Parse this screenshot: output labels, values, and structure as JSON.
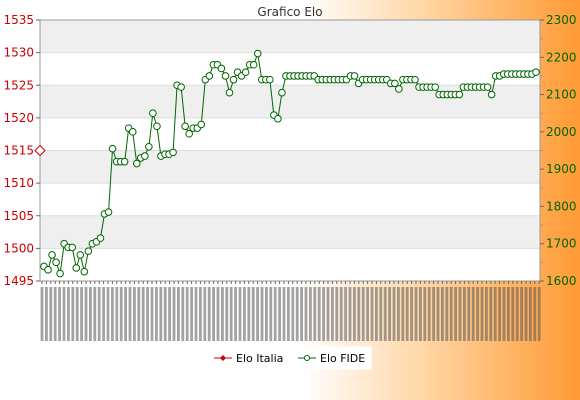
{
  "chart_data": {
    "type": "line",
    "title": "Grafico Elo",
    "legend": {
      "placement": "bottom-center",
      "items": [
        "Elo Italia",
        "Elo FIDE"
      ]
    },
    "y_left": {
      "label": "",
      "ticks": [
        "1495",
        "1500",
        "1505",
        "1510",
        "1515",
        "1520",
        "1525",
        "1530",
        "1535"
      ],
      "ylim": [
        1495,
        1535
      ],
      "color": "#cc0000"
    },
    "y_right": {
      "label": "",
      "ticks": [
        "1600",
        "1700",
        "1800",
        "1900",
        "2000",
        "2100",
        "2200",
        "2300"
      ],
      "ylim": [
        1600,
        2300
      ],
      "color": "#006600"
    },
    "grid": true,
    "series": [
      {
        "name": "Elo Italia",
        "axis": "left",
        "color": "#cc0000",
        "marker": "diamond",
        "values": [
          1515
        ]
      },
      {
        "name": "Elo FIDE",
        "axis": "right",
        "color": "#006600",
        "marker": "circle",
        "values": [
          1639,
          1630,
          1670,
          1650,
          1620,
          1700,
          1690,
          1690,
          1635,
          1670,
          1625,
          1680,
          1700,
          1705,
          1715,
          1780,
          1785,
          1955,
          1920,
          1920,
          1920,
          2010,
          2000,
          1915,
          1930,
          1935,
          1960,
          2050,
          2015,
          1935,
          1940,
          1940,
          1945,
          2125,
          2120,
          2015,
          1995,
          2010,
          2010,
          2020,
          2140,
          2150,
          2180,
          2180,
          2170,
          2150,
          2105,
          2140,
          2160,
          2150,
          2160,
          2180,
          2180,
          2210,
          2140,
          2140,
          2140,
          2045,
          2035,
          2105,
          2150,
          2150,
          2150,
          2150,
          2150,
          2150,
          2150,
          2150,
          2140,
          2140,
          2140,
          2140,
          2140,
          2140,
          2140,
          2140,
          2150,
          2150,
          2130,
          2140,
          2140,
          2140,
          2140,
          2140,
          2140,
          2140,
          2130,
          2130,
          2115,
          2140,
          2140,
          2140,
          2140,
          2120,
          2120,
          2120,
          2120,
          2120,
          2100,
          2100,
          2100,
          2100,
          2100,
          2100,
          2120,
          2120,
          2120,
          2120,
          2120,
          2120,
          2120,
          2100,
          2150,
          2150,
          2155,
          2155,
          2155,
          2155,
          2155,
          2155,
          2155,
          2155,
          2160
        ]
      }
    ]
  }
}
